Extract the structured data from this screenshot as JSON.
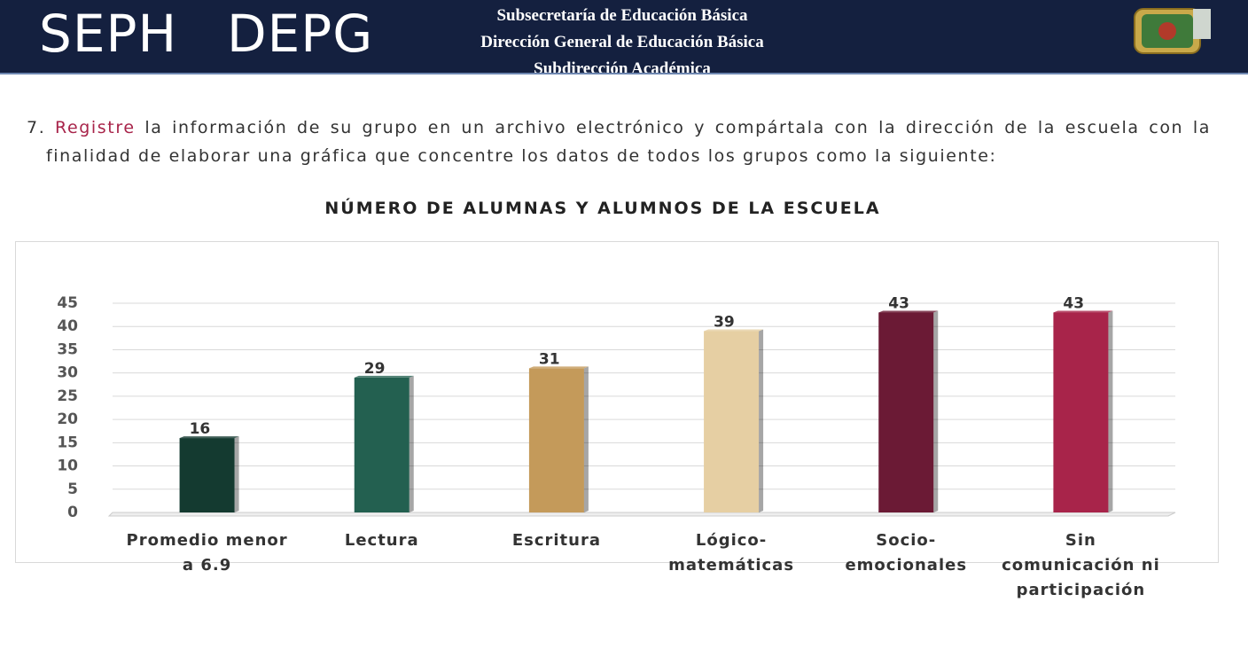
{
  "header": {
    "left": "SEPH",
    "middle": "DEPG",
    "lines": [
      "Subsecretaría de Educación Básica",
      "Dirección General de Educación Básica",
      "Subdirección Académica"
    ]
  },
  "instruction": {
    "number": "7.",
    "emphasis": "Registre",
    "text": "la información de su grupo en un archivo electrónico y compártala con la dirección de la escuela con la finalidad de elaborar una gráfica que concentre los datos de todos los grupos como la siguiente:"
  },
  "chart_data": {
    "type": "bar",
    "title": "NÚMERO DE ALUMNAS Y ALUMNOS DE LA ESCUELA",
    "categories": [
      "Promedio menor a 6.9",
      "Lectura",
      "Escritura",
      "Lógico-matemáticas",
      "Socio-emocionales",
      "Sin comunicación ni participación"
    ],
    "values": [
      16,
      29,
      31,
      39,
      43,
      43
    ],
    "colors": [
      "#143a30",
      "#236050",
      "#c49a5a",
      "#e6cfa3",
      "#6b1a35",
      "#a8244a"
    ],
    "ylim": [
      0,
      45
    ],
    "yticks": [
      0,
      5,
      10,
      15,
      20,
      25,
      30,
      35,
      40,
      45
    ],
    "grid": true
  }
}
